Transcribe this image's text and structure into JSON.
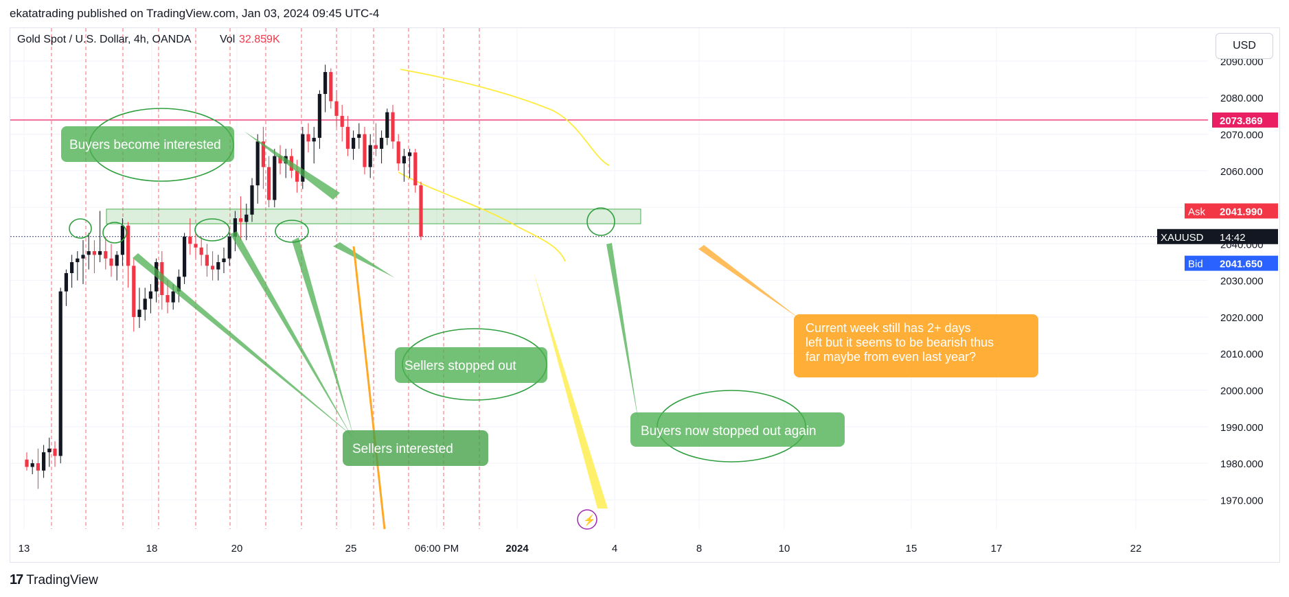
{
  "header": {
    "text": "ekatatrading published on TradingView.com, Jan 03, 2024 09:45 UTC-4"
  },
  "brand": {
    "logo_icon": "tradingview-logo-icon",
    "logo_glyph": "17",
    "name": "TradingView"
  },
  "currency_button": "USD",
  "colors": {
    "bull": "#131722",
    "bear": "#f23645",
    "zone_green": "#4caf50",
    "yellow": "#ffeb3b",
    "orange": "#ffa726",
    "pink_line": "#e91e63",
    "ask": "#f23645",
    "bid": "#2962ff"
  },
  "chart_data": {
    "type": "candlestick",
    "title": "Gold Spot / U.S. Dollar, 4h, OANDA",
    "volume_label": "Vol",
    "volume_value": "32.859K",
    "ylim": [
      1962,
      2099
    ],
    "y_ticks": [
      "2090.000",
      "2080.000",
      "2070.000",
      "2060.000",
      "2050.000",
      "2040.000",
      "2030.000",
      "2020.000",
      "2010.000",
      "2000.000",
      "1990.000",
      "1980.000",
      "1970.000"
    ],
    "x_ticks": [
      "13",
      "18",
      "20",
      "25",
      "06:00 PM",
      "2024",
      "4",
      "8",
      "10",
      "15",
      "17",
      "22"
    ],
    "x_tick_bold": [
      "2024"
    ],
    "price_labels": {
      "level": "2073.869",
      "ask_label": "Ask",
      "ask_value": "2041.990",
      "symbol": "XAUUSD",
      "countdown": "14:42",
      "bid_label": "Bid",
      "bid_value": "2041.650"
    },
    "horizontal_level": 2073.869,
    "current_price": 2041.99,
    "candles": [
      [
        1981,
        1983,
        1978,
        1979
      ],
      [
        1979,
        1981,
        1977,
        1980
      ],
      [
        1980,
        1984,
        1973,
        1978
      ],
      [
        1978,
        1985,
        1976,
        1983
      ],
      [
        1983,
        1987,
        1979,
        1984
      ],
      [
        1984,
        1986,
        1979,
        1982
      ],
      [
        1982,
        2028,
        1980,
        2027
      ],
      [
        2027,
        2033,
        2023,
        2032
      ],
      [
        2032,
        2037,
        2028,
        2035
      ],
      [
        2035,
        2038,
        2030,
        2036
      ],
      [
        2036,
        2041,
        2029,
        2037
      ],
      [
        2037,
        2043,
        2033,
        2038
      ],
      [
        2038,
        2041,
        2032,
        2037
      ],
      [
        2037,
        2049,
        2035,
        2038
      ],
      [
        2038,
        2042,
        2033,
        2036
      ],
      [
        2036,
        2040,
        2031,
        2034
      ],
      [
        2034,
        2038,
        2030,
        2037
      ],
      [
        2037,
        2047,
        2034,
        2045
      ],
      [
        2045,
        2046,
        2028,
        2034
      ],
      [
        2034,
        2036,
        2016,
        2020
      ],
      [
        2020,
        2028,
        2017,
        2022
      ],
      [
        2022,
        2028,
        2019,
        2025
      ],
      [
        2025,
        2029,
        2021,
        2027
      ],
      [
        2027,
        2036,
        2024,
        2035
      ],
      [
        2035,
        2038,
        2022,
        2026
      ],
      [
        2026,
        2030,
        2021,
        2024
      ],
      [
        2024,
        2029,
        2022,
        2027
      ],
      [
        2027,
        2033,
        2024,
        2031
      ],
      [
        2031,
        2043,
        2029,
        2042
      ],
      [
        2042,
        2047,
        2037,
        2040
      ],
      [
        2040,
        2043,
        2036,
        2039
      ],
      [
        2039,
        2042,
        2034,
        2037
      ],
      [
        2037,
        2040,
        2031,
        2034
      ],
      [
        2034,
        2038,
        2030,
        2033
      ],
      [
        2033,
        2037,
        2030,
        2035
      ],
      [
        2035,
        2039,
        2032,
        2036
      ],
      [
        2036,
        2043,
        2034,
        2042
      ],
      [
        2042,
        2049,
        2038,
        2047
      ],
      [
        2047,
        2053,
        2041,
        2046
      ],
      [
        2046,
        2051,
        2041,
        2048
      ],
      [
        2048,
        2058,
        2046,
        2056
      ],
      [
        2056,
        2070,
        2051,
        2068
      ],
      [
        2068,
        2072,
        2055,
        2061
      ],
      [
        2061,
        2064,
        2050,
        2052
      ],
      [
        2052,
        2066,
        2050,
        2064
      ],
      [
        2064,
        2067,
        2059,
        2062
      ],
      [
        2062,
        2066,
        2058,
        2064
      ],
      [
        2064,
        2066,
        2058,
        2060
      ],
      [
        2060,
        2063,
        2054,
        2057
      ],
      [
        2057,
        2072,
        2055,
        2070
      ],
      [
        2070,
        2073,
        2065,
        2068
      ],
      [
        2068,
        2072,
        2062,
        2069
      ],
      [
        2069,
        2082,
        2066,
        2081
      ],
      [
        2081,
        2089,
        2076,
        2087
      ],
      [
        2087,
        2088,
        2077,
        2079
      ],
      [
        2079,
        2082,
        2072,
        2075
      ],
      [
        2075,
        2078,
        2068,
        2072
      ],
      [
        2072,
        2075,
        2064,
        2066
      ],
      [
        2066,
        2071,
        2063,
        2069
      ],
      [
        2069,
        2073,
        2066,
        2070
      ],
      [
        2070,
        2072,
        2059,
        2061
      ],
      [
        2061,
        2070,
        2058,
        2067
      ],
      [
        2067,
        2073,
        2064,
        2066
      ],
      [
        2066,
        2071,
        2062,
        2069
      ],
      [
        2069,
        2077,
        2067,
        2076
      ],
      [
        2076,
        2078,
        2066,
        2068
      ],
      [
        2068,
        2070,
        2060,
        2062
      ],
      [
        2062,
        2066,
        2057,
        2064
      ],
      [
        2064,
        2066,
        2058,
        2065
      ],
      [
        2065,
        2066,
        2054,
        2056
      ],
      [
        2056,
        2057,
        2041,
        2042
      ]
    ],
    "session_lines": [
      60,
      110,
      164,
      216,
      270,
      320,
      372,
      424,
      475,
      529,
      580,
      631,
      683
    ]
  },
  "annotations": [
    {
      "text": "Buyers become interested",
      "color": "#4caf50",
      "style": "green"
    },
    {
      "text": "Sellers stopped out",
      "color": "#4caf50",
      "style": "green"
    },
    {
      "text": "Sellers interested",
      "color": "#43a047",
      "style": "green-dark"
    },
    {
      "text": "Buyers now stopped out again",
      "color": "#4caf50",
      "style": "green"
    },
    {
      "text": "Current week still has 2+ days left but it seems to be bearish thus far maybe from even last year?",
      "color": "#ffa726",
      "style": "orange"
    }
  ]
}
